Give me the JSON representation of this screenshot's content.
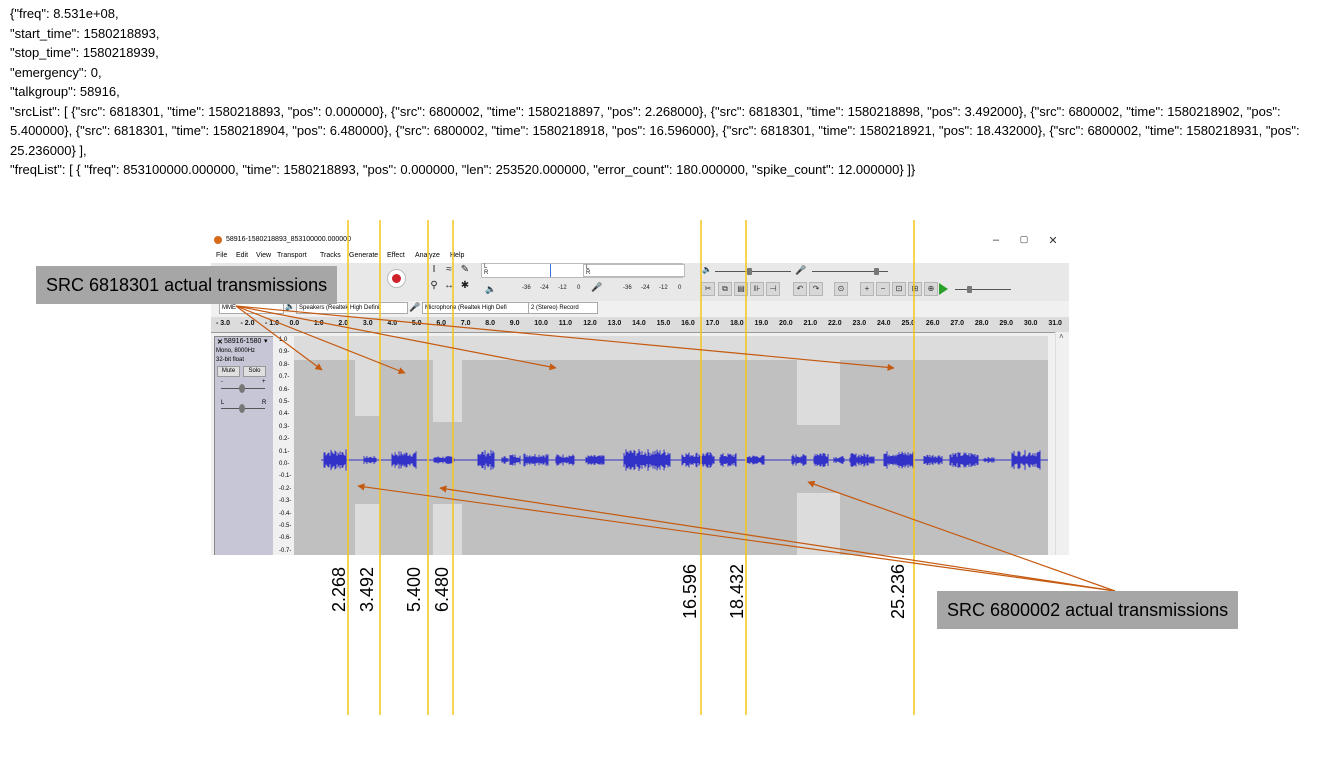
{
  "json_text": [
    "{\"freq\": 8.531e+08,",
    "\"start_time\": 1580218893,",
    "\"stop_time\": 1580218939,",
    "\"emergency\": 0,",
    "\"talkgroup\": 58916,",
    "\"srcList\": [ {\"src\": 6818301, \"time\": 1580218893, \"pos\": 0.000000}, {\"src\": 6800002, \"time\": 1580218897, \"pos\": 2.268000}, {\"src\": 6818301, \"time\": 1580218898, \"pos\": 3.492000}, {\"src\": 6800002, \"time\": 1580218902, \"pos\": 5.400000}, {\"src\": 6818301, \"time\": 1580218904, \"pos\": 6.480000}, {\"src\": 6800002, \"time\": 1580218918, \"pos\": 16.596000}, {\"src\": 6818301, \"time\": 1580218921, \"pos\": 18.432000}, {\"src\": 6800002, \"time\": 1580218931, \"pos\": 25.236000} ],",
    "\"freqList\": [ { \"freq\": 853100000.000000, \"time\": 1580218893, \"pos\": 0.000000, \"len\": 253520.000000, \"error_count\": 180.000000, \"spike_count\": 12.000000} ]}"
  ],
  "window": {
    "title": "58916-1580218893_853100000.000000",
    "minimize": "–",
    "maximize": "▢",
    "close": "✕"
  },
  "menu": [
    "File",
    "Edit",
    "View",
    "Transport",
    "Tracks",
    "Generate",
    "Effect",
    "Analyze",
    "Help"
  ],
  "meters": {
    "record_scale": [
      "-36",
      "-24",
      "-12",
      "0"
    ],
    "play_scale": [
      "-36",
      "-24",
      "-12",
      "0"
    ],
    "channel_l": "L",
    "channel_r": "R"
  },
  "devices": {
    "host": "MME",
    "output": "Speakers (Realtek High Definit",
    "input": "Microphone (Realtek High Defi",
    "channels": "2 (Stereo) Record"
  },
  "ruler_ticks": [
    "- 3.0",
    "- 2.0",
    "- 1.0",
    "0.0",
    "1.0",
    "2.0",
    "3.0",
    "4.0",
    "5.0",
    "6.0",
    "7.0",
    "8.0",
    "9.0",
    "10.0",
    "11.0",
    "12.0",
    "13.0",
    "14.0",
    "15.0",
    "16.0",
    "17.0",
    "18.0",
    "19.0",
    "20.0",
    "21.0",
    "22.0",
    "23.0",
    "24.0",
    "25.0",
    "26.0",
    "27.0",
    "28.0",
    "29.0",
    "30.0",
    "31.0"
  ],
  "track": {
    "name": "58916-1580",
    "info_1": "Mono, 8000Hz",
    "info_2": "32-bit float",
    "mute": "Mute",
    "solo": "Solo",
    "gain_minus": "-",
    "gain_plus": "+",
    "pan_l": "L",
    "pan_r": "R"
  },
  "amp_scale": [
    "1.0",
    "0.9-",
    "0.8-",
    "0.7-",
    "0.6-",
    "0.5-",
    "0.4-",
    "0.3-",
    "0.2-",
    "0.1-",
    "0.0-",
    "-0.1-",
    "-0.2-",
    "-0.3-",
    "-0.4-",
    "-0.5-",
    "-0.6-",
    "-0.7-"
  ],
  "annotations": {
    "src_a": "SRC 6818301 actual transmissions",
    "src_b": "SRC 6800002 actual transmissions",
    "markers": [
      "2.268",
      "3.492",
      "5.400",
      "6.480",
      "16.596",
      "18.432",
      "25.236"
    ]
  },
  "colors": {
    "waveform": "#3232c8",
    "marker_line": "#f5c518",
    "arrow": "#c55a11",
    "callout_bg": "#a6a6a6",
    "track_bg": "#c0c0c0",
    "highlight": "#dcdcdc"
  }
}
